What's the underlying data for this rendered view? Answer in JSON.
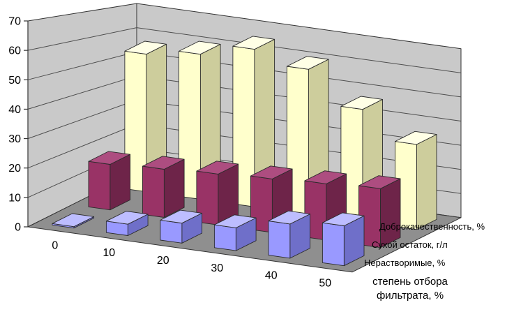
{
  "chart_data": {
    "type": "bar",
    "style": "3d-column",
    "title": "",
    "categories": [
      "0",
      "10",
      "20",
      "30",
      "40",
      "50"
    ],
    "series": [
      {
        "name": "Доброкачественность, %",
        "row": "back",
        "values": [
          55,
          58,
          63,
          58,
          45,
          34
        ],
        "color": "#FFFFCC",
        "color_side": "#CDCD9C",
        "color_top": "#FFFFE6"
      },
      {
        "name": "Сухой остаток, г/л",
        "row": "middle",
        "values": [
          17,
          18,
          19,
          20,
          21,
          22
        ],
        "color": "#993366",
        "color_side": "#6E2449",
        "color_top": "#AD4D80"
      },
      {
        "name": "Нерастворимые, %",
        "row": "front",
        "values": [
          0.5,
          4,
          7,
          8,
          12,
          14
        ],
        "color": "#9999FF",
        "color_side": "#6F6FC9",
        "color_top": "#BDBDFF"
      }
    ],
    "xlabel": "степень отбора фильтрата, %",
    "xlabel_lines": [
      "степень отбора",
      "фильтрата, %"
    ],
    "ylabel": "",
    "ylim": [
      0,
      70
    ],
    "yticks": [
      0,
      10,
      20,
      30,
      40,
      50,
      60,
      70
    ],
    "grid": true,
    "legend_position": "right-of-floor",
    "background": "#FFFFFF",
    "wall_color": "#C9C9C9",
    "floor_color": "#8F8F8F",
    "gridline_color": "#4D4D4D",
    "outline_color": "#333333",
    "bar_outline_color": "#2B2B2B",
    "text_color": "#000000"
  }
}
